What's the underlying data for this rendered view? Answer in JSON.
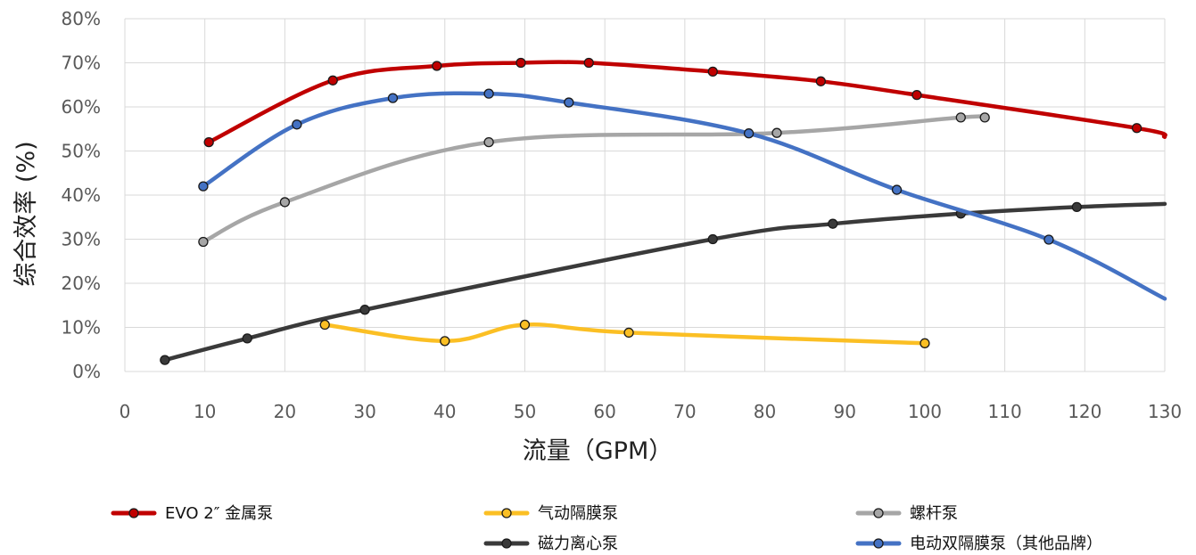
{
  "chart_data": {
    "type": "line",
    "title": "",
    "xlabel": "流量（GPM）",
    "ylabel": "综合效率 (%)",
    "xlim": [
      0,
      130
    ],
    "ylim": [
      0,
      80
    ],
    "x_ticks": [
      0,
      10,
      20,
      30,
      40,
      50,
      60,
      70,
      80,
      90,
      100,
      110,
      120,
      130
    ],
    "y_ticks": [
      0,
      10,
      20,
      30,
      40,
      50,
      60,
      70,
      80
    ],
    "y_tick_suffix": "%",
    "grid": {
      "horizontal": true,
      "vertical": true
    },
    "legend_position": "bottom",
    "series": [
      {
        "name": "EVO 2″ 金属泵",
        "color": "#c00000",
        "points": [
          [
            10.5,
            52
          ],
          [
            26,
            66
          ],
          [
            39,
            69.3
          ],
          [
            49.5,
            70
          ],
          [
            58,
            70
          ],
          [
            73.5,
            68
          ],
          [
            87,
            65.8
          ],
          [
            99,
            62.7
          ],
          [
            126.5,
            55.2
          ],
          [
            130,
            53.2
          ]
        ],
        "markers": [
          [
            10.5,
            52
          ],
          [
            26,
            66
          ],
          [
            39,
            69.3
          ],
          [
            49.5,
            70
          ],
          [
            58,
            70
          ],
          [
            73.5,
            68
          ],
          [
            87,
            65.8
          ],
          [
            99,
            62.7
          ],
          [
            126.5,
            55.2
          ]
        ]
      },
      {
        "name": "气动隔膜泵",
        "color": "#fbbf24",
        "points": [
          [
            25,
            10.6
          ],
          [
            40,
            6.9
          ],
          [
            50,
            10.6
          ],
          [
            63,
            8.8
          ],
          [
            100,
            6.4
          ]
        ],
        "markers": [
          [
            25,
            10.6
          ],
          [
            40,
            6.9
          ],
          [
            50,
            10.6
          ],
          [
            63,
            8.8
          ],
          [
            100,
            6.4
          ]
        ]
      },
      {
        "name": "螺杆泵",
        "color": "#a6a6a6",
        "points": [
          [
            9.8,
            29.4
          ],
          [
            20,
            38.4
          ],
          [
            45.5,
            52
          ],
          [
            81.5,
            54.1
          ],
          [
            104.5,
            57.6
          ],
          [
            107.5,
            57.6
          ]
        ],
        "markers": [
          [
            9.8,
            29.4
          ],
          [
            20,
            38.4
          ],
          [
            45.5,
            52
          ],
          [
            81.5,
            54.1
          ],
          [
            104.5,
            57.6
          ],
          [
            107.5,
            57.6
          ]
        ]
      },
      {
        "name": "磁力离心泵",
        "color": "#3a3a3a",
        "points": [
          [
            5,
            2.6
          ],
          [
            15.3,
            7.5
          ],
          [
            30,
            14
          ],
          [
            73.5,
            30
          ],
          [
            88.5,
            33.5
          ],
          [
            104.5,
            35.8
          ],
          [
            119,
            37.3
          ],
          [
            130,
            38
          ]
        ],
        "markers": [
          [
            5,
            2.6
          ],
          [
            15.3,
            7.5
          ],
          [
            30,
            14
          ],
          [
            73.5,
            30
          ],
          [
            88.5,
            33.5
          ],
          [
            104.5,
            35.8
          ],
          [
            119,
            37.3
          ]
        ]
      },
      {
        "name": "电动双隔膜泵（其他品牌）",
        "color": "#4472c4",
        "points": [
          [
            9.8,
            42
          ],
          [
            21.5,
            56
          ],
          [
            33.5,
            62
          ],
          [
            45.5,
            63
          ],
          [
            55.5,
            61
          ],
          [
            78,
            54
          ],
          [
            96.5,
            41.2
          ],
          [
            115.5,
            29.9
          ],
          [
            130,
            16.5
          ]
        ],
        "markers": [
          [
            9.8,
            42
          ],
          [
            21.5,
            56
          ],
          [
            33.5,
            62
          ],
          [
            45.5,
            63
          ],
          [
            55.5,
            61
          ],
          [
            78,
            54
          ],
          [
            96.5,
            41.2
          ],
          [
            115.5,
            29.9
          ]
        ]
      }
    ]
  }
}
